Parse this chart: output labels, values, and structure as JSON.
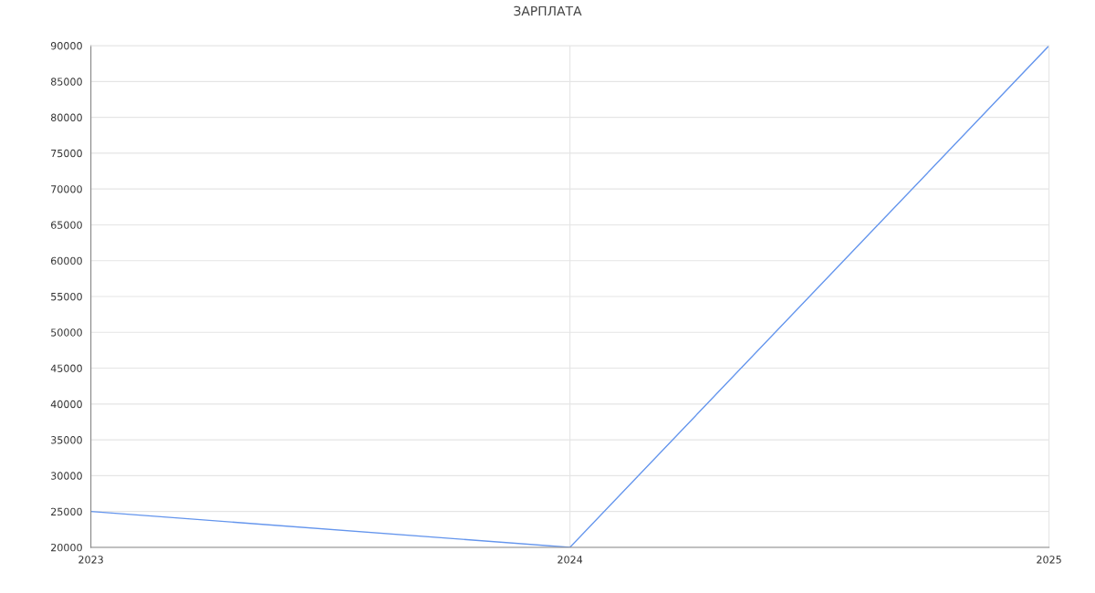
{
  "chart_data": {
    "type": "line",
    "title": "ЗАРПЛАТА",
    "x": [
      2023,
      2024,
      2025
    ],
    "series": [
      {
        "color": "#6495ed",
        "values": [
          25000,
          20000,
          90000
        ]
      }
    ],
    "xlim": [
      2023,
      2025
    ],
    "xticks": [
      2023,
      2024,
      2025
    ],
    "ylim": [
      20000,
      90000
    ],
    "yticks": [
      20000,
      25000,
      30000,
      35000,
      40000,
      45000,
      50000,
      55000,
      60000,
      65000,
      70000,
      75000,
      80000,
      85000,
      90000
    ],
    "grid": true,
    "marker": "none",
    "line_style": "solid",
    "legend": false
  }
}
